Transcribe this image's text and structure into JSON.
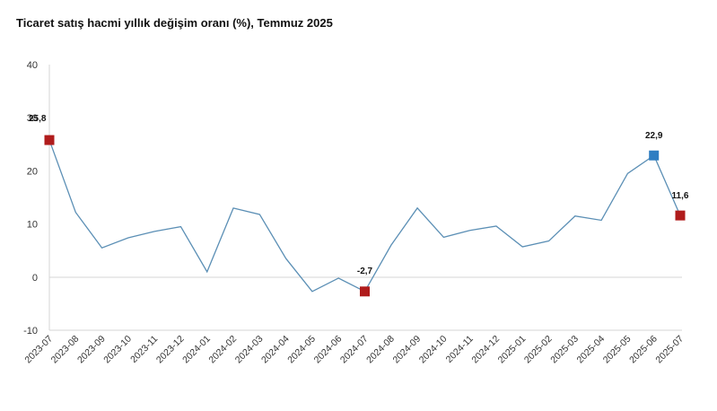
{
  "chart_data": {
    "type": "line",
    "title": "Ticaret satış hacmi yıllık değişim oranı (%), Temmuz 2025",
    "xlabel": "",
    "ylabel": "",
    "ylim": [
      -10,
      40
    ],
    "yticks": [
      -10,
      0,
      10,
      20,
      30,
      40
    ],
    "grid": false,
    "categories": [
      "2023-07",
      "2023-08",
      "2023-09",
      "2023-10",
      "2023-11",
      "2023-12",
      "2024-01",
      "2024-02",
      "2024-03",
      "2024-04",
      "2024-05",
      "2024-06",
      "2024-07",
      "2024-08",
      "2024-09",
      "2024-10",
      "2024-11",
      "2024-12",
      "2025-01",
      "2025-02",
      "2025-03",
      "2025-04",
      "2025-05",
      "2025-06",
      "2025-07"
    ],
    "series": [
      {
        "values": [
          25.8,
          12.2,
          5.5,
          7.4,
          8.6,
          9.5,
          1.0,
          13.0,
          11.8,
          3.5,
          -2.7,
          -0.2,
          -2.7,
          6.0,
          13.0,
          7.5,
          8.8,
          9.6,
          5.7,
          6.8,
          11.5,
          10.7,
          19.5,
          22.9,
          11.6
        ],
        "color": "#5b8fb5"
      }
    ],
    "highlights": [
      {
        "index": 0,
        "label": "25,8",
        "color": "#b01c1c"
      },
      {
        "index": 12,
        "label": "-2,7",
        "color": "#b01c1c"
      },
      {
        "index": 23,
        "label": "22,9",
        "color": "#2f7ec2"
      },
      {
        "index": 24,
        "label": "11,6",
        "color": "#b01c1c"
      }
    ]
  }
}
